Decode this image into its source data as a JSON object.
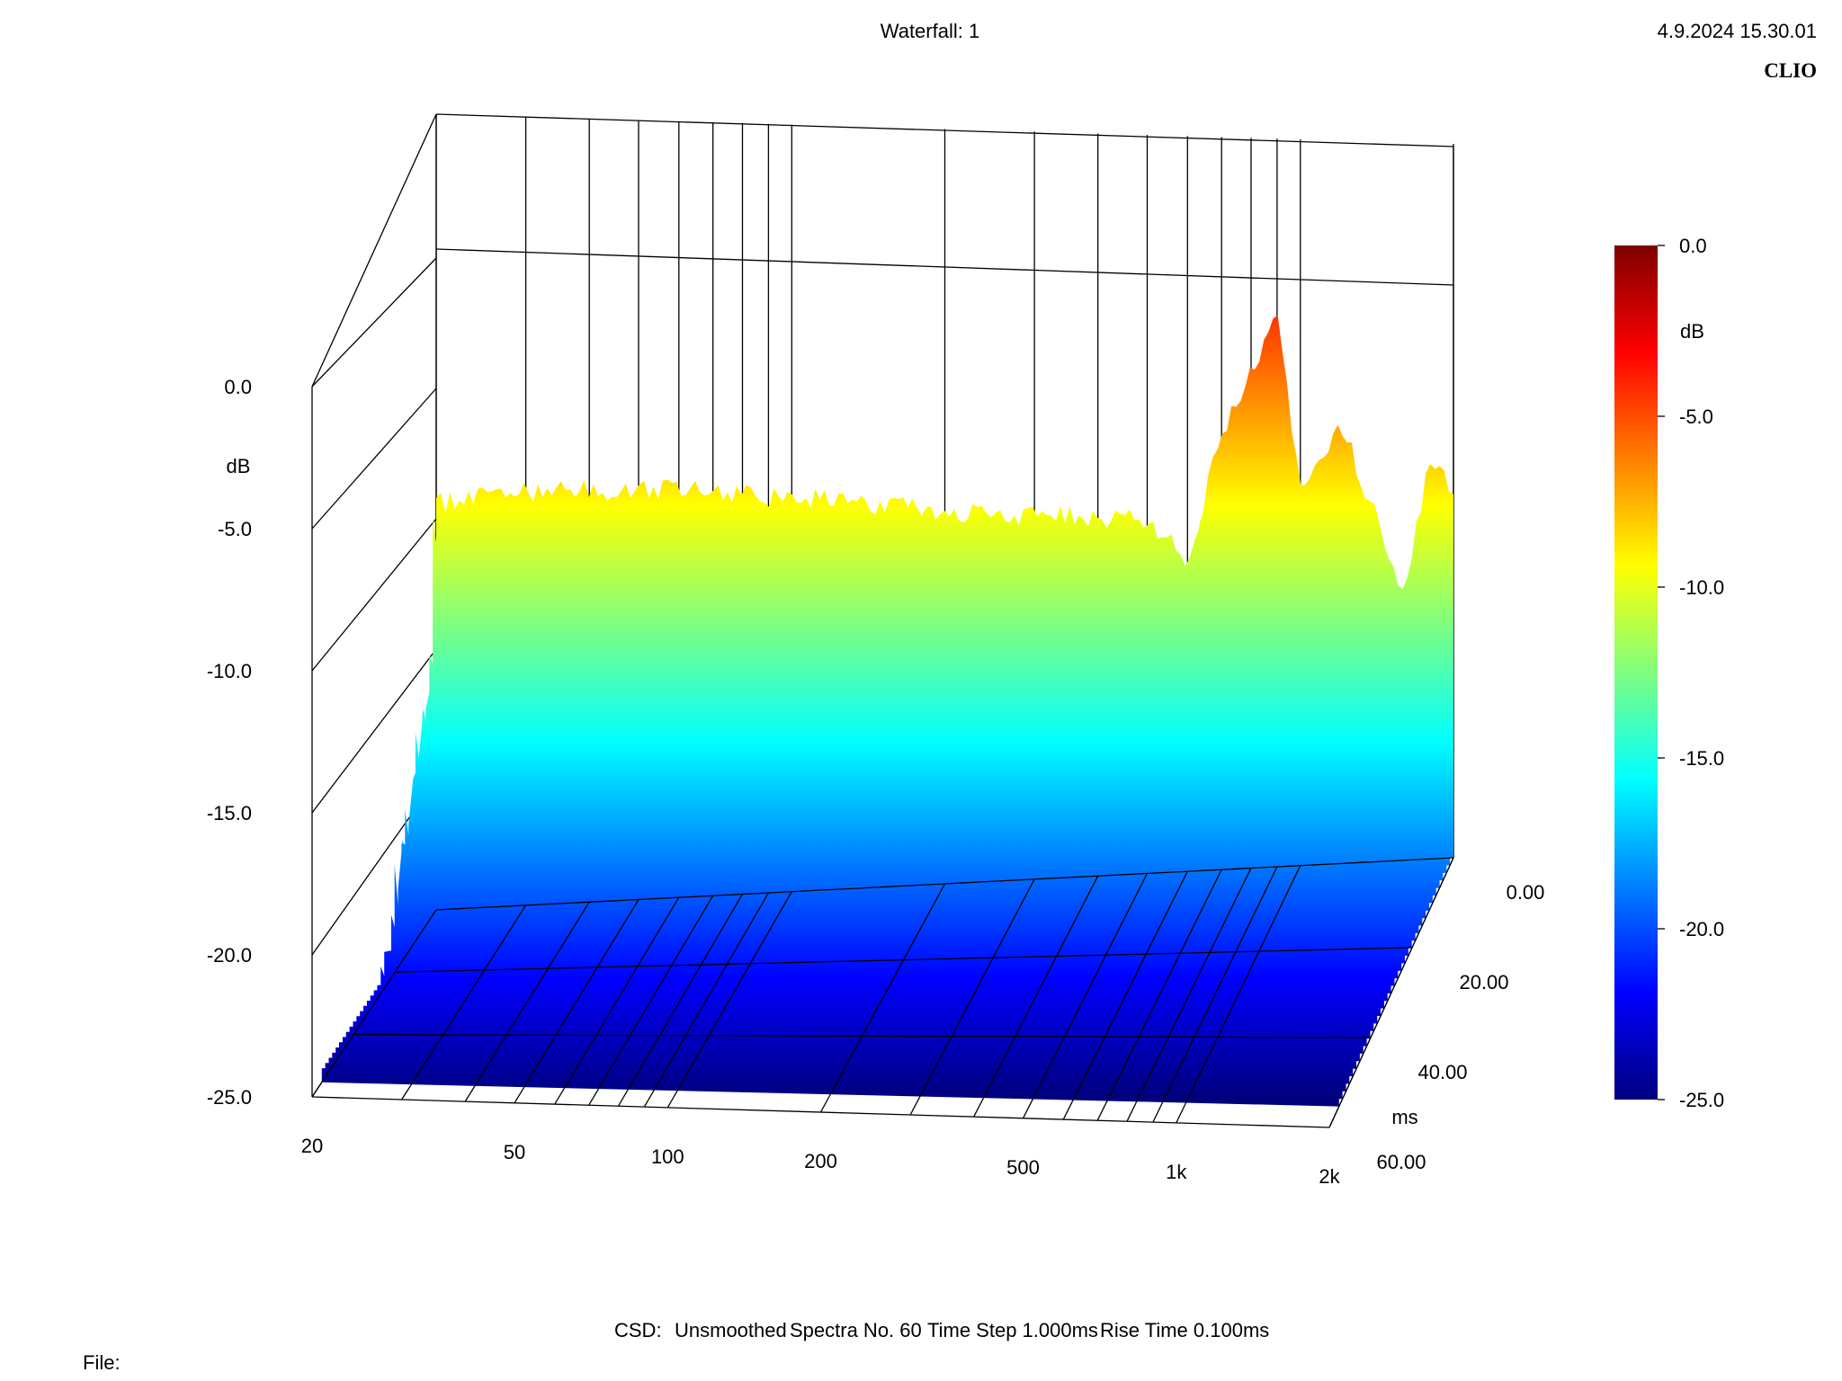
{
  "header": {
    "title": "Waterfall: 1",
    "datetime": "4.9.2024 15.30.01",
    "brand": "CLIO"
  },
  "footer": {
    "csd": "CSD:",
    "smoothing": "Unsmoothed",
    "spectra": "Spectra No. 60",
    "time_step": "Time Step 1.000ms",
    "rise_time": "Rise Time 0.100ms",
    "file_label": "File:"
  },
  "chart_data": {
    "type": "waterfall",
    "title": "Waterfall: 1",
    "x_axis": {
      "label": "",
      "scale": "log",
      "range": [
        20,
        2000
      ],
      "tick_values": [
        20,
        50,
        100,
        200,
        500,
        1000,
        2000
      ],
      "tick_labels": [
        "20",
        "50",
        "100",
        "200",
        "500",
        "1k",
        "2k"
      ]
    },
    "y_axis": {
      "label": "dB",
      "range": [
        -25,
        0
      ],
      "tick_labels": [
        "0.0",
        "-5.0",
        "-10.0",
        "-15.0",
        "-20.0",
        "-25.0"
      ]
    },
    "z_axis": {
      "label": "ms",
      "range": [
        0,
        60
      ],
      "tick_labels": [
        "0.00",
        "20.00",
        "40.00",
        "60.00"
      ]
    },
    "colorbar": {
      "label": "dB",
      "range": [
        -25,
        0
      ],
      "tick_labels": [
        "0.0",
        "-5.0",
        "-10.0",
        "-15.0",
        "-20.0",
        "-25.0"
      ],
      "colors": [
        "#00007f",
        "#0000ff",
        "#007fff",
        "#00ffff",
        "#7fff7f",
        "#ffff00",
        "#ff7f00",
        "#ff0000",
        "#7f0000"
      ]
    },
    "spectra_count": 60,
    "time_step_ms": 1.0,
    "rise_time_ms": 0.1,
    "spectrum_at_0ms": {
      "frequency_hz": [
        20,
        30,
        50,
        80,
        100,
        150,
        200,
        300,
        400,
        500,
        600,
        700,
        800,
        900,
        1000,
        1200,
        1400,
        1600,
        1800,
        2000
      ],
      "level_db": [
        -9.0,
        -8.5,
        -8.4,
        -8.6,
        -8.8,
        -9.0,
        -9.3,
        -9.5,
        -9.6,
        -9.6,
        -11.5,
        -6.0,
        -3.5,
        -0.5,
        -8.5,
        -5.5,
        -9.5,
        -13.0,
        -7.0,
        -8.5
      ]
    }
  }
}
